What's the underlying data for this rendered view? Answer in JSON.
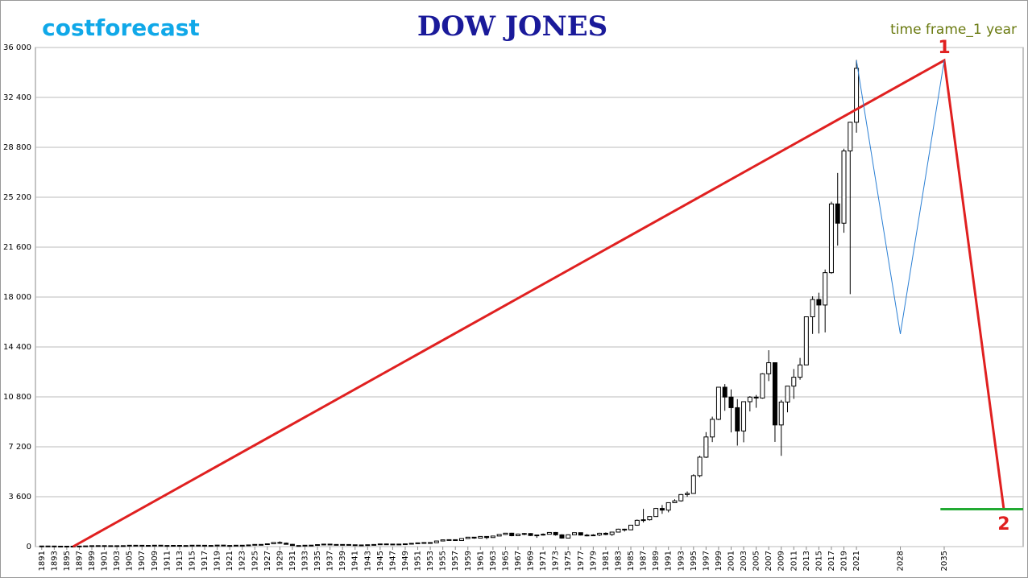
{
  "chart_data": {
    "type": "candlestick",
    "brand": "costforecast",
    "title": "DOW JONES",
    "subtitle": "time frame_1 year",
    "grid": true,
    "xlim": [
      1890,
      2047.6
    ],
    "ylim": [
      0,
      36000
    ],
    "yticks": [
      0,
      {
        "value": 3600,
        "label": "3 600"
      },
      {
        "value": 7200,
        "label": "7 200"
      },
      {
        "value": 10800,
        "label": "10 800"
      },
      {
        "value": 14400,
        "label": "14 400"
      },
      {
        "value": 18000,
        "label": "18 000"
      },
      {
        "value": 21600,
        "label": "21 600"
      },
      {
        "value": 25200,
        "label": "25 200"
      },
      {
        "value": 28800,
        "label": "28 800"
      },
      {
        "value": 32400,
        "label": "32 400"
      },
      {
        "value": 36000,
        "label": "36 000"
      }
    ],
    "xticks": [
      1891,
      1893,
      1895,
      1897,
      1899,
      1901,
      1903,
      1905,
      1907,
      1909,
      1911,
      1913,
      1915,
      1917,
      1919,
      1921,
      1923,
      1925,
      1927,
      1929,
      1931,
      1933,
      1935,
      1937,
      1939,
      1941,
      1943,
      1945,
      1947,
      1949,
      1951,
      1953,
      1955,
      1957,
      1959,
      1961,
      1963,
      1965,
      1967,
      1969,
      1971,
      1973,
      1975,
      1977,
      1979,
      1981,
      1983,
      1985,
      1987,
      1989,
      1991,
      1993,
      1995,
      1997,
      1999,
      2001,
      2003,
      2005,
      2007,
      2009,
      2011,
      2013,
      2015,
      2017,
      2019,
      2021,
      2028,
      2035
    ],
    "x": [
      1891,
      1892,
      1893,
      1894,
      1895,
      1896,
      1897,
      1898,
      1899,
      1900,
      1901,
      1902,
      1903,
      1904,
      1905,
      1906,
      1907,
      1908,
      1909,
      1910,
      1911,
      1912,
      1913,
      1914,
      1915,
      1916,
      1917,
      1918,
      1919,
      1920,
      1921,
      1922,
      1923,
      1924,
      1925,
      1926,
      1927,
      1928,
      1929,
      1930,
      1931,
      1932,
      1933,
      1934,
      1935,
      1936,
      1937,
      1938,
      1939,
      1940,
      1941,
      1942,
      1943,
      1944,
      1945,
      1946,
      1947,
      1948,
      1949,
      1950,
      1951,
      1952,
      1953,
      1954,
      1955,
      1956,
      1957,
      1958,
      1959,
      1960,
      1961,
      1962,
      1963,
      1964,
      1965,
      1966,
      1967,
      1968,
      1969,
      1970,
      1971,
      1972,
      1973,
      1974,
      1975,
      1976,
      1977,
      1978,
      1979,
      1980,
      1981,
      1982,
      1983,
      1984,
      1985,
      1986,
      1987,
      1988,
      1989,
      1990,
      1991,
      1992,
      1993,
      1994,
      1995,
      1996,
      1997,
      1998,
      1999,
      2000,
      2001,
      2002,
      2003,
      2004,
      2005,
      2006,
      2007,
      2008,
      2009,
      2010,
      2011,
      2012,
      2013,
      2014,
      2015,
      2016,
      2017,
      2018,
      2019,
      2020,
      2021
    ],
    "open": [
      36,
      43,
      40,
      31,
      30,
      30,
      28,
      38,
      49,
      66,
      70,
      64,
      64,
      49,
      69,
      96,
      94,
      58,
      86,
      99,
      81,
      81,
      87,
      78,
      54,
      99,
      95,
      74,
      82,
      107,
      71,
      81,
      98,
      95,
      120,
      156,
      157,
      202,
      300,
      248,
      164,
      77,
      59,
      99,
      104,
      144,
      179,
      120,
      154,
      150,
      131,
      110,
      119,
      135,
      152,
      192,
      177,
      181,
      177,
      200,
      235,
      269,
      291,
      280,
      404,
      488,
      499,
      435,
      583,
      679,
      615,
      731,
      652,
      762,
      874,
      969,
      785,
      905,
      943,
      800,
      838,
      890,
      1020,
      850,
      616,
      852,
      1004,
      831,
      805,
      838,
      963,
      875,
      1046,
      1258,
      1211,
      1546,
      1895,
      1938,
      2168,
      2753,
      2633,
      3168,
      3301,
      3754,
      3834,
      5117,
      6448,
      7908,
      9181,
      11497,
      10787,
      10021,
      8341,
      10453,
      10783,
      10717,
      12463,
      13264,
      8776,
      10428,
      11577,
      12217,
      13104,
      16576,
      17823,
      17425,
      19762,
      24719,
      23327,
      28538,
      30606
    ],
    "high": [
      45,
      44,
      41,
      33,
      34,
      31,
      41,
      50,
      77,
      71,
      78,
      68,
      67,
      73,
      97,
      103,
      96,
      88,
      100,
      99,
      87,
      94,
      88,
      83,
      99,
      110,
      99,
      89,
      119,
      109,
      81,
      103,
      105,
      120,
      159,
      166,
      202,
      300,
      381,
      294,
      194,
      88,
      108,
      110,
      148,
      184,
      194,
      158,
      155,
      152,
      133,
      119,
      146,
      152,
      196,
      212,
      186,
      193,
      200,
      235,
      276,
      292,
      293,
      404,
      488,
      521,
      520,
      583,
      679,
      685,
      734,
      735,
      767,
      891,
      969,
      995,
      943,
      985,
      968,
      842,
      950,
      1036,
      1051,
      891,
      881,
      1014,
      1004,
      907,
      897,
      1000,
      1024,
      1070,
      1287,
      1286,
      1553,
      1955,
      2722,
      2183,
      2791,
      2999,
      3168,
      3413,
      3794,
      3978,
      5216,
      6560,
      8259,
      9374,
      11497,
      11723,
      11337,
      10635,
      10454,
      10854,
      10940,
      12510,
      14165,
      13279,
      10580,
      11585,
      12810,
      13610,
      16576,
      18053,
      18312,
      19987,
      24876,
      26951,
      28701,
      30637,
      35100
    ],
    "low": [
      35,
      39,
      24,
      29,
      28,
      21,
      27,
      35,
      48,
      53,
      61,
      59,
      43,
      46,
      68,
      86,
      53,
      58,
      79,
      73,
      73,
      80,
      72,
      53,
      54,
      84,
      65,
      73,
      79,
      66,
      63,
      78,
      85,
      88,
      115,
      135,
      152,
      191,
      198,
      157,
      73,
      41,
      50,
      85,
      96,
      143,
      113,
      98,
      121,
      111,
      106,
      92,
      119,
      134,
      151,
      163,
      163,
      165,
      161,
      196,
      234,
      256,
      255,
      279,
      388,
      462,
      419,
      434,
      574,
      566,
      610,
      535,
      646,
      760,
      840,
      744,
      784,
      825,
      769,
      631,
      797,
      889,
      788,
      577,
      615,
      850,
      800,
      742,
      796,
      759,
      824,
      776,
      1027,
      1086,
      1184,
      1502,
      1738,
      1879,
      2144,
      2365,
      2470,
      3136,
      3241,
      3593,
      3832,
      5000,
      6391,
      7539,
      9120,
      9796,
      8236,
      7286,
      7524,
      9750,
      10012,
      10668,
      11939,
      7552,
      6547,
      9686,
      10655,
      12035,
      13104,
      15340,
      15370,
      15450,
      19677,
      21712,
      22638,
      18214,
      29856
    ],
    "close": [
      43,
      40,
      31,
      30,
      30,
      28,
      38,
      49,
      66,
      70,
      64,
      64,
      49,
      69,
      96,
      94,
      58,
      86,
      99,
      81,
      81,
      87,
      78,
      54,
      99,
      95,
      74,
      82,
      107,
      71,
      81,
      98,
      95,
      120,
      156,
      157,
      202,
      300,
      248,
      164,
      77,
      59,
      99,
      104,
      144,
      179,
      120,
      154,
      150,
      131,
      110,
      119,
      135,
      152,
      192,
      177,
      181,
      177,
      200,
      235,
      269,
      291,
      280,
      404,
      488,
      499,
      435,
      583,
      679,
      615,
      731,
      652,
      762,
      874,
      969,
      785,
      905,
      943,
      800,
      838,
      890,
      1020,
      850,
      616,
      852,
      1004,
      831,
      805,
      838,
      963,
      875,
      1046,
      1258,
      1211,
      1546,
      1895,
      1938,
      2168,
      2753,
      2633,
      3168,
      3301,
      3754,
      3834,
      5117,
      6448,
      7908,
      9181,
      11497,
      10787,
      10021,
      8341,
      10453,
      10783,
      10717,
      12463,
      13264,
      8776,
      10428,
      11577,
      12217,
      13104,
      16576,
      17823,
      17425,
      19762,
      24719,
      23327,
      28538,
      30606,
      34500
    ],
    "lines": [
      {
        "color": "#e02020",
        "x": [
          1896,
          2035,
          2044.5
        ],
        "y": [
          0,
          35070,
          2730
        ]
      },
      {
        "color": "#2a7fd4",
        "x": [
          2021,
          2028,
          2035
        ],
        "y": [
          35070,
          15330,
          35070
        ]
      },
      {
        "color": "#22aa33",
        "x": [
          2034.4,
          2047.6
        ],
        "y": [
          2700,
          2700
        ]
      }
    ],
    "annotations": [
      {
        "text": "1",
        "x": 2035,
        "y": 35070,
        "color": "#e02020"
      },
      {
        "text": "2",
        "x": 2044.5,
        "y": 2730,
        "color": "#e02020"
      }
    ]
  }
}
